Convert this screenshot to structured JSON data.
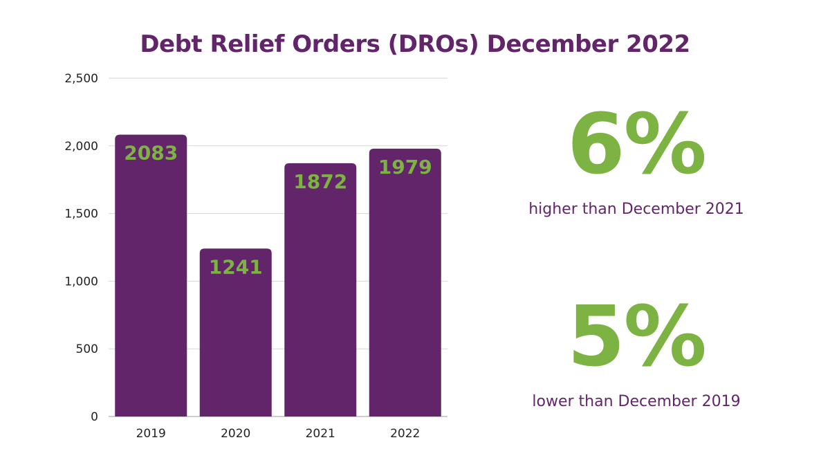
{
  "chart_data": {
    "type": "bar",
    "title": "Debt Relief Orders (DROs) December 2022",
    "categories": [
      "2019",
      "2020",
      "2021",
      "2022"
    ],
    "values": [
      2083,
      1241,
      1872,
      1979
    ],
    "data_labels": [
      "2083",
      "1241",
      "1872",
      "1979"
    ],
    "yticks": [
      "0",
      "500",
      "1,000",
      "1,500",
      "2,000",
      "2,500"
    ],
    "ytick_values": [
      0,
      500,
      1000,
      1500,
      2000,
      2500
    ],
    "ylim": [
      0,
      2500
    ],
    "xlabel": "",
    "ylabel": "",
    "grid": true,
    "legend": "none",
    "colors": {
      "bar": "#62256a",
      "label": "#7cb342",
      "grid": "#d6d6d6",
      "axis_text": "#222222"
    }
  },
  "stats": [
    {
      "value": "6%",
      "description": "higher than December 2021"
    },
    {
      "value": "5%",
      "description": "lower than December 2019"
    }
  ]
}
